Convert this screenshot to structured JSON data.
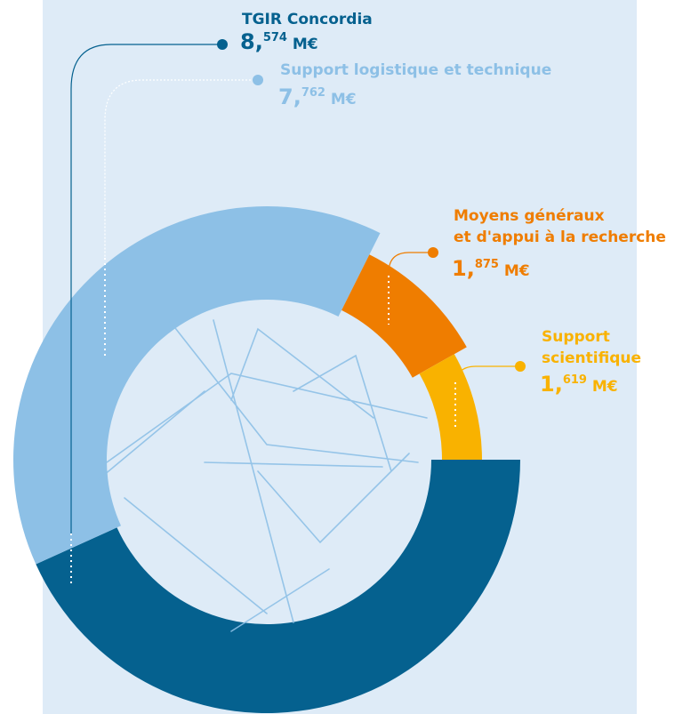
{
  "chart_data": {
    "type": "donut",
    "series": [
      {
        "name": "TGIR Concordia",
        "color": "#05618f",
        "values": [
          8.574
        ],
        "value_labels": [
          "8,574 M€"
        ]
      },
      {
        "name": "Support logistique et technique",
        "color": "#8dc0e6",
        "values": [
          7.762
        ],
        "value_labels": [
          "7,762 M€"
        ]
      },
      {
        "name": "Moyens généraux\net d'appui à la recherche",
        "color": "#ef7d00",
        "values": [
          1.875
        ],
        "value_labels": [
          "1,875 M€"
        ]
      },
      {
        "name": "Support\nscientifique",
        "color": "#f9b200",
        "values": [
          1.619
        ],
        "value_labels": [
          "1,619 M€"
        ]
      }
    ]
  }
}
